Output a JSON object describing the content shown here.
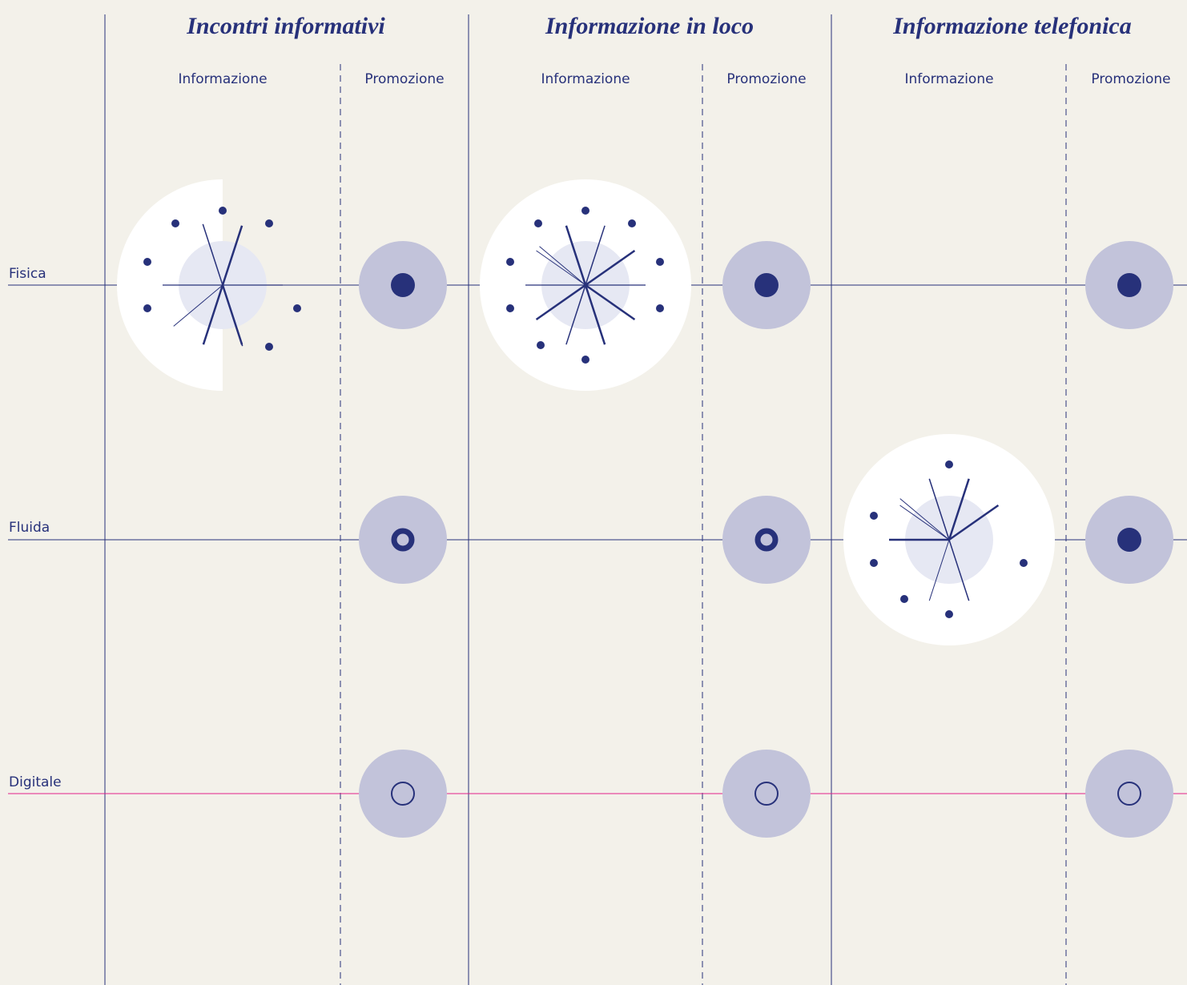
{
  "header": {
    "columns": [
      {
        "title": "Incontri informativi",
        "sub": [
          "Informazione",
          "Promozione"
        ]
      },
      {
        "title": "Informazione in loco",
        "sub": [
          "Informazione",
          "Promozione"
        ]
      },
      {
        "title": "Informazione telefonica",
        "sub": [
          "Informazione",
          "Promozione"
        ]
      }
    ]
  },
  "rows": [
    "Fisica",
    "Fluida",
    "Digitale"
  ]
}
